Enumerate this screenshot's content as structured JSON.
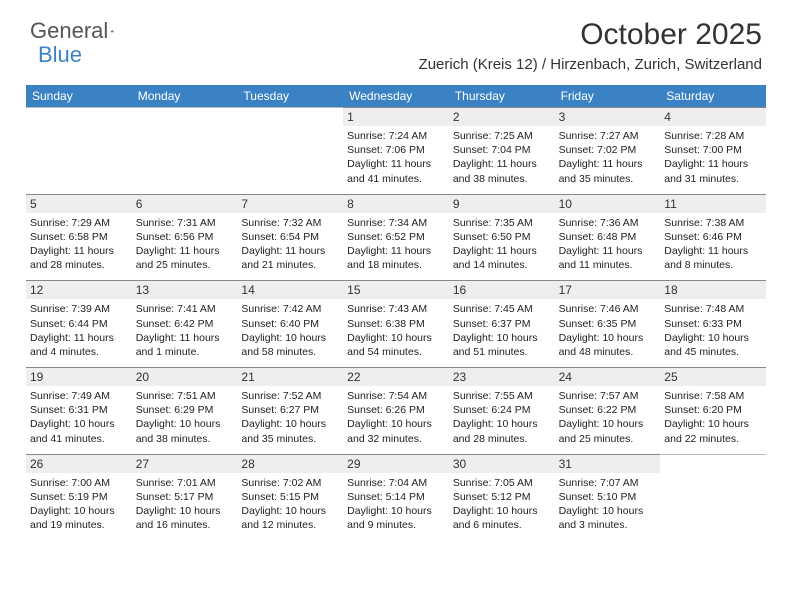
{
  "logo": {
    "text1": "General",
    "text2": "Blue"
  },
  "title": "October 2025",
  "location": "Zuerich (Kreis 12) / Hirzenbach, Zurich, Switzerland",
  "colors": {
    "header_bar": "#3b82c4",
    "day_header_bg": "#eeeeee",
    "day_header_border": "#888888",
    "text": "#333333",
    "background": "#ffffff"
  },
  "dow": [
    "Sunday",
    "Monday",
    "Tuesday",
    "Wednesday",
    "Thursday",
    "Friday",
    "Saturday"
  ],
  "weeks": [
    [
      {
        "n": "",
        "sunrise": "",
        "sunset": "",
        "daylight": ""
      },
      {
        "n": "",
        "sunrise": "",
        "sunset": "",
        "daylight": ""
      },
      {
        "n": "",
        "sunrise": "",
        "sunset": "",
        "daylight": ""
      },
      {
        "n": "1",
        "sunrise": "Sunrise: 7:24 AM",
        "sunset": "Sunset: 7:06 PM",
        "daylight": "Daylight: 11 hours and 41 minutes."
      },
      {
        "n": "2",
        "sunrise": "Sunrise: 7:25 AM",
        "sunset": "Sunset: 7:04 PM",
        "daylight": "Daylight: 11 hours and 38 minutes."
      },
      {
        "n": "3",
        "sunrise": "Sunrise: 7:27 AM",
        "sunset": "Sunset: 7:02 PM",
        "daylight": "Daylight: 11 hours and 35 minutes."
      },
      {
        "n": "4",
        "sunrise": "Sunrise: 7:28 AM",
        "sunset": "Sunset: 7:00 PM",
        "daylight": "Daylight: 11 hours and 31 minutes."
      }
    ],
    [
      {
        "n": "5",
        "sunrise": "Sunrise: 7:29 AM",
        "sunset": "Sunset: 6:58 PM",
        "daylight": "Daylight: 11 hours and 28 minutes."
      },
      {
        "n": "6",
        "sunrise": "Sunrise: 7:31 AM",
        "sunset": "Sunset: 6:56 PM",
        "daylight": "Daylight: 11 hours and 25 minutes."
      },
      {
        "n": "7",
        "sunrise": "Sunrise: 7:32 AM",
        "sunset": "Sunset: 6:54 PM",
        "daylight": "Daylight: 11 hours and 21 minutes."
      },
      {
        "n": "8",
        "sunrise": "Sunrise: 7:34 AM",
        "sunset": "Sunset: 6:52 PM",
        "daylight": "Daylight: 11 hours and 18 minutes."
      },
      {
        "n": "9",
        "sunrise": "Sunrise: 7:35 AM",
        "sunset": "Sunset: 6:50 PM",
        "daylight": "Daylight: 11 hours and 14 minutes."
      },
      {
        "n": "10",
        "sunrise": "Sunrise: 7:36 AM",
        "sunset": "Sunset: 6:48 PM",
        "daylight": "Daylight: 11 hours and 11 minutes."
      },
      {
        "n": "11",
        "sunrise": "Sunrise: 7:38 AM",
        "sunset": "Sunset: 6:46 PM",
        "daylight": "Daylight: 11 hours and 8 minutes."
      }
    ],
    [
      {
        "n": "12",
        "sunrise": "Sunrise: 7:39 AM",
        "sunset": "Sunset: 6:44 PM",
        "daylight": "Daylight: 11 hours and 4 minutes."
      },
      {
        "n": "13",
        "sunrise": "Sunrise: 7:41 AM",
        "sunset": "Sunset: 6:42 PM",
        "daylight": "Daylight: 11 hours and 1 minute."
      },
      {
        "n": "14",
        "sunrise": "Sunrise: 7:42 AM",
        "sunset": "Sunset: 6:40 PM",
        "daylight": "Daylight: 10 hours and 58 minutes."
      },
      {
        "n": "15",
        "sunrise": "Sunrise: 7:43 AM",
        "sunset": "Sunset: 6:38 PM",
        "daylight": "Daylight: 10 hours and 54 minutes."
      },
      {
        "n": "16",
        "sunrise": "Sunrise: 7:45 AM",
        "sunset": "Sunset: 6:37 PM",
        "daylight": "Daylight: 10 hours and 51 minutes."
      },
      {
        "n": "17",
        "sunrise": "Sunrise: 7:46 AM",
        "sunset": "Sunset: 6:35 PM",
        "daylight": "Daylight: 10 hours and 48 minutes."
      },
      {
        "n": "18",
        "sunrise": "Sunrise: 7:48 AM",
        "sunset": "Sunset: 6:33 PM",
        "daylight": "Daylight: 10 hours and 45 minutes."
      }
    ],
    [
      {
        "n": "19",
        "sunrise": "Sunrise: 7:49 AM",
        "sunset": "Sunset: 6:31 PM",
        "daylight": "Daylight: 10 hours and 41 minutes."
      },
      {
        "n": "20",
        "sunrise": "Sunrise: 7:51 AM",
        "sunset": "Sunset: 6:29 PM",
        "daylight": "Daylight: 10 hours and 38 minutes."
      },
      {
        "n": "21",
        "sunrise": "Sunrise: 7:52 AM",
        "sunset": "Sunset: 6:27 PM",
        "daylight": "Daylight: 10 hours and 35 minutes."
      },
      {
        "n": "22",
        "sunrise": "Sunrise: 7:54 AM",
        "sunset": "Sunset: 6:26 PM",
        "daylight": "Daylight: 10 hours and 32 minutes."
      },
      {
        "n": "23",
        "sunrise": "Sunrise: 7:55 AM",
        "sunset": "Sunset: 6:24 PM",
        "daylight": "Daylight: 10 hours and 28 minutes."
      },
      {
        "n": "24",
        "sunrise": "Sunrise: 7:57 AM",
        "sunset": "Sunset: 6:22 PM",
        "daylight": "Daylight: 10 hours and 25 minutes."
      },
      {
        "n": "25",
        "sunrise": "Sunrise: 7:58 AM",
        "sunset": "Sunset: 6:20 PM",
        "daylight": "Daylight: 10 hours and 22 minutes."
      }
    ],
    [
      {
        "n": "26",
        "sunrise": "Sunrise: 7:00 AM",
        "sunset": "Sunset: 5:19 PM",
        "daylight": "Daylight: 10 hours and 19 minutes."
      },
      {
        "n": "27",
        "sunrise": "Sunrise: 7:01 AM",
        "sunset": "Sunset: 5:17 PM",
        "daylight": "Daylight: 10 hours and 16 minutes."
      },
      {
        "n": "28",
        "sunrise": "Sunrise: 7:02 AM",
        "sunset": "Sunset: 5:15 PM",
        "daylight": "Daylight: 10 hours and 12 minutes."
      },
      {
        "n": "29",
        "sunrise": "Sunrise: 7:04 AM",
        "sunset": "Sunset: 5:14 PM",
        "daylight": "Daylight: 10 hours and 9 minutes."
      },
      {
        "n": "30",
        "sunrise": "Sunrise: 7:05 AM",
        "sunset": "Sunset: 5:12 PM",
        "daylight": "Daylight: 10 hours and 6 minutes."
      },
      {
        "n": "31",
        "sunrise": "Sunrise: 7:07 AM",
        "sunset": "Sunset: 5:10 PM",
        "daylight": "Daylight: 10 hours and 3 minutes."
      },
      {
        "n": "",
        "sunrise": "",
        "sunset": "",
        "daylight": ""
      }
    ]
  ]
}
